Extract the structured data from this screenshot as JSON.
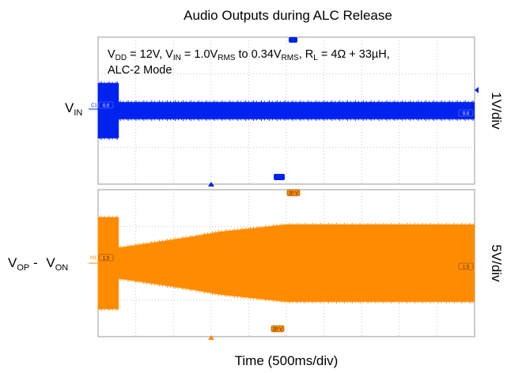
{
  "chart_data": {
    "type": "line",
    "title": "Audio Outputs during ALC Release",
    "xlabel": "Time (500ms/div)",
    "conditions": {
      "line1": {
        "vdd_base": "V",
        "vdd_sub": "DD",
        "vdd_val": " = 12V, ",
        "vin_base": "V",
        "vin_sub": "IN",
        "vin_mid": " = 1.0V",
        "rms1_sub": "RMS",
        "to": " to 0.34V",
        "rms2_sub": "RMS",
        "comma": ", ",
        "rl_base": "R",
        "rl_sub": "L",
        "rl_val": " = 4Ω + 33µH,"
      },
      "line2": "ALC-2 Mode"
    },
    "panels": [
      {
        "name": "VIN",
        "label_base": "V",
        "label_sub": "IN",
        "scale": "1V/div",
        "color": "#0022ee",
        "x_divisions": 10,
        "y_divisions": 4,
        "envelope": {
          "x": [
            0,
            0.55,
            0.55,
            10
          ],
          "amplitude_div": [
            0.75,
            0.75,
            0.23,
            0.23
          ]
        },
        "channel_tag": "C1",
        "level_marker": "0.0",
        "right_marker": "0.0",
        "top_marker": "",
        "bottom_marker": ""
      },
      {
        "name": "VOP-VON",
        "label_base1": "V",
        "label_sub1": "OP",
        "label_mid": " - ",
        "label_base2": "V",
        "label_sub2": "ON",
        "scale": "5V/div",
        "color": "#ff8c00",
        "x_divisions": 10,
        "y_divisions": 4,
        "envelope": {
          "x": [
            0,
            0.55,
            0.55,
            2.5,
            3.2,
            5.0,
            10
          ],
          "amplitude_div": [
            1.25,
            1.25,
            0.42,
            0.72,
            0.85,
            1.05,
            1.05
          ]
        },
        "channel_tag": "M1",
        "level_marker": "1.5",
        "right_marker": "1.5",
        "top_marker": "20 V",
        "bottom_marker": "20 V"
      }
    ]
  }
}
